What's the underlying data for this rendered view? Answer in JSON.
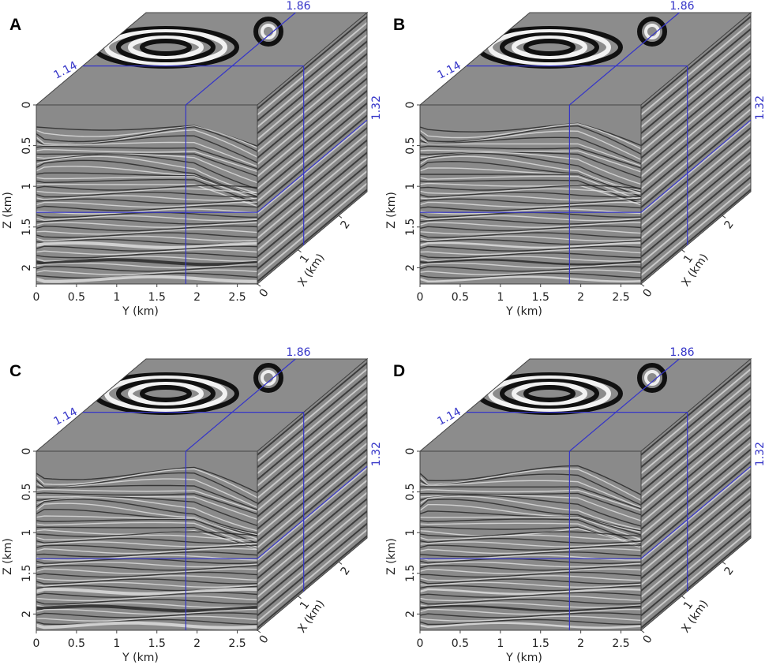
{
  "panels": [
    {
      "letter": "A",
      "variant": 0
    },
    {
      "letter": "B",
      "variant": 1
    },
    {
      "letter": "C",
      "variant": 2
    },
    {
      "letter": "D",
      "variant": 3
    }
  ],
  "axes": {
    "y": {
      "title": "Y (km)",
      "ticks": [
        "0",
        "0.5",
        "1",
        "1.5",
        "2",
        "2.5"
      ],
      "values": [
        0,
        0.5,
        1,
        1.5,
        2,
        2.5
      ],
      "range": [
        0,
        2.75
      ]
    },
    "z": {
      "title": "Z (km)",
      "ticks": [
        "0",
        "0.5",
        "1",
        "1.5",
        "2"
      ],
      "values": [
        0,
        0.5,
        1,
        1.5,
        2
      ],
      "range": [
        0,
        2.2
      ]
    },
    "x": {
      "title": "X (km)",
      "ticks": [
        "0",
        "1",
        "2"
      ],
      "values": [
        0,
        1,
        2
      ],
      "range": [
        0,
        2.7
      ]
    }
  },
  "slices": {
    "y": "1.86",
    "x": "1.14",
    "z": "1.32"
  },
  "slice_values": {
    "y": 1.86,
    "z": 1.32,
    "x": 1.14
  },
  "colors": {
    "slice_line": "#3535c8",
    "background": "#ffffff",
    "seismic_base": "#8a8a8a"
  }
}
